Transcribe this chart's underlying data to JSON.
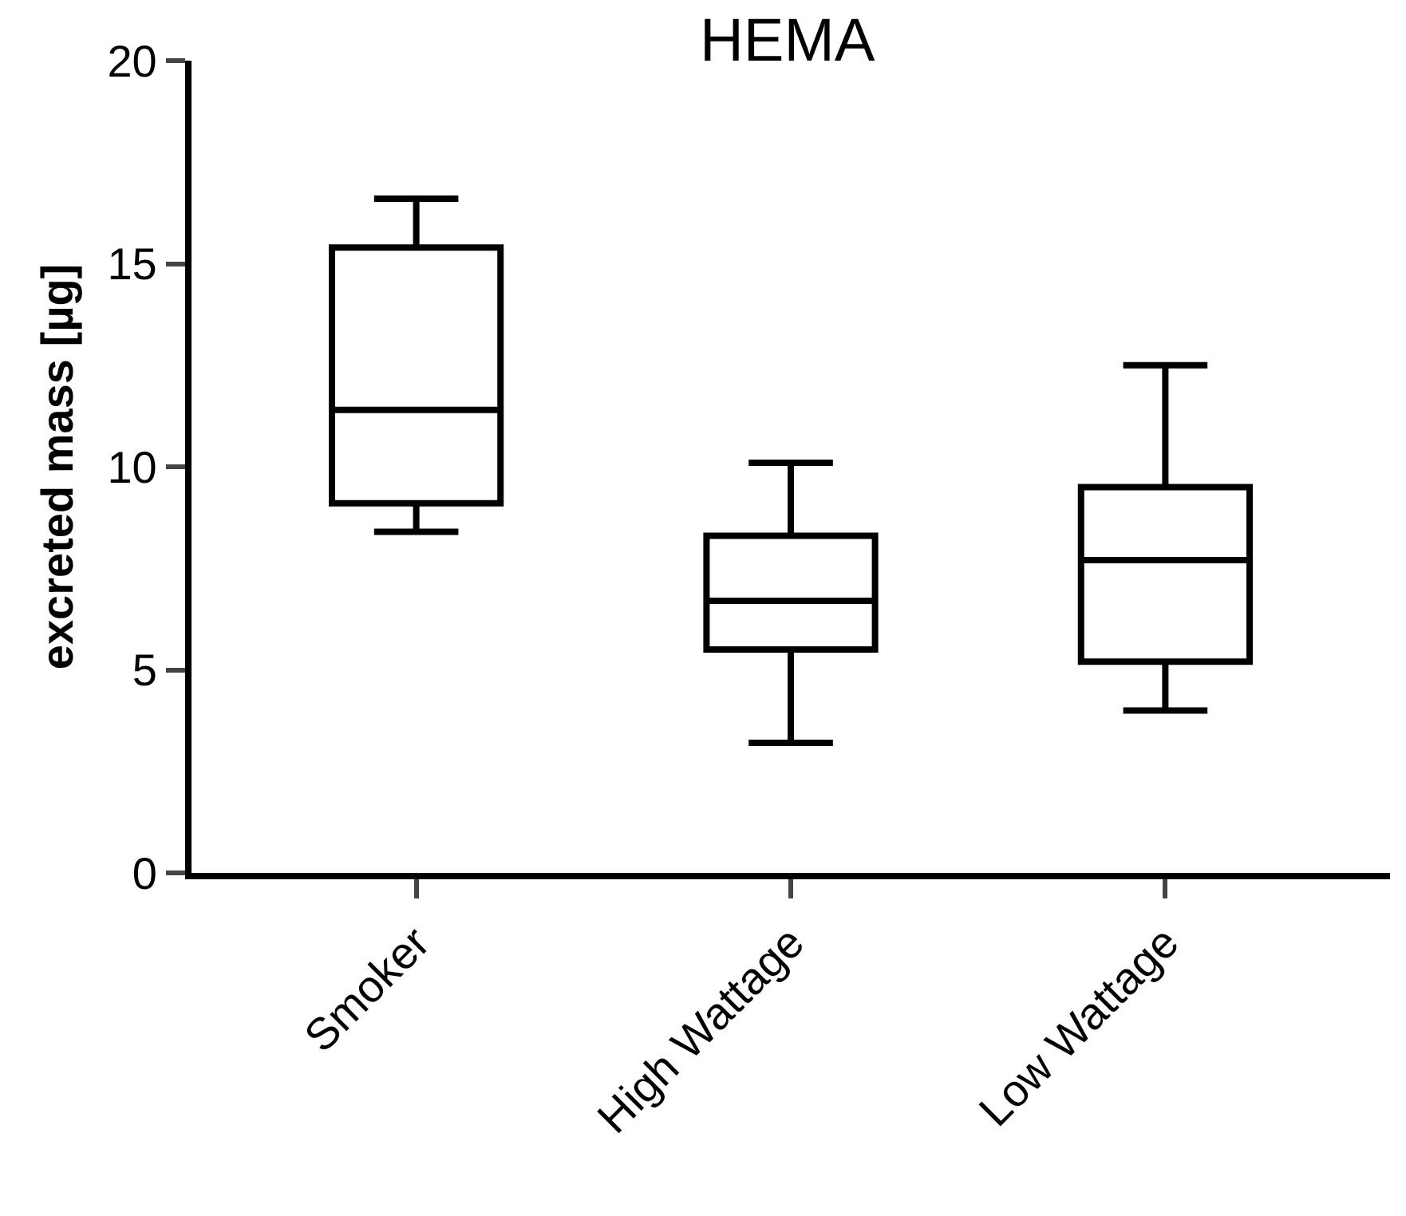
{
  "chart_data": {
    "type": "box",
    "title": "HEMA",
    "ylabel": "excreted mass [µg]",
    "categories": [
      "Smoker",
      "High Wattage",
      "Low Wattage"
    ],
    "series": [
      {
        "color": "#000000",
        "boxes": [
          {
            "low": 8.4,
            "q1": 9.1,
            "median": 11.4,
            "q3": 15.4,
            "high": 16.6
          },
          {
            "low": 3.2,
            "q1": 5.5,
            "median": 6.7,
            "q3": 8.3,
            "high": 10.1
          },
          {
            "low": 4.0,
            "q1": 5.2,
            "median": 7.7,
            "q3": 9.5,
            "high": 12.5
          }
        ]
      }
    ],
    "ylim": [
      0,
      20
    ],
    "yticks": [
      0,
      5,
      10,
      15,
      20
    ],
    "grid": false
  }
}
